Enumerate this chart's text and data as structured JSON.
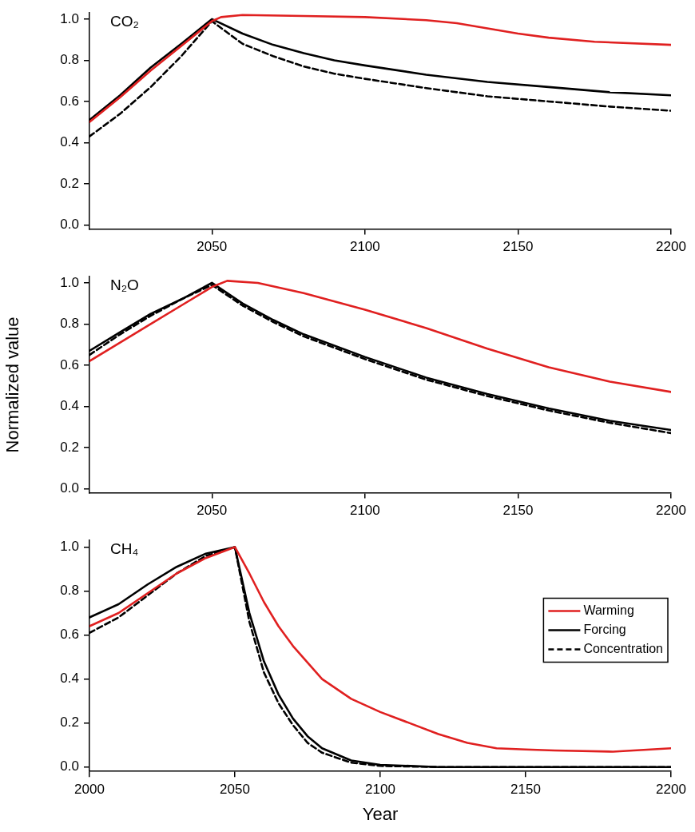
{
  "chart_data": [
    {
      "type": "line",
      "title": "CO₂",
      "xlim": [
        2010,
        2200
      ],
      "xticks": [
        2050,
        2100,
        2150,
        2200
      ],
      "ylim": [
        -0.02,
        1.03
      ],
      "yticks": [
        {
          "value": 0,
          "label": "0.0"
        },
        {
          "value": 0.2,
          "label": "0.2"
        },
        {
          "value": 0.4,
          "label": "0.4"
        },
        {
          "value": 0.6,
          "label": "0.6"
        },
        {
          "value": 0.8,
          "label": "0.8"
        },
        {
          "value": 1,
          "label": "1.0"
        }
      ],
      "series": [
        {
          "color": "#e02020",
          "line_style": "solid",
          "x": [
            2010,
            2020,
            2030,
            2040,
            2050,
            2053,
            2060,
            2080,
            2100,
            2120,
            2130,
            2140,
            2150,
            2160,
            2175,
            2200
          ],
          "values": [
            0.5,
            0.62,
            0.75,
            0.87,
            0.99,
            1.01,
            1.02,
            1.015,
            1.01,
            0.995,
            0.98,
            0.955,
            0.93,
            0.91,
            0.89,
            0.875
          ]
        },
        {
          "color": "#000000",
          "line_style": "solid",
          "x": [
            2010,
            2020,
            2030,
            2040,
            2050,
            2060,
            2070,
            2080,
            2090,
            2100,
            2120,
            2140,
            2160,
            2180,
            2200
          ],
          "values": [
            0.51,
            0.63,
            0.765,
            0.88,
            1.0,
            0.93,
            0.875,
            0.835,
            0.8,
            0.775,
            0.73,
            0.695,
            0.67,
            0.645,
            0.63
          ]
        },
        {
          "color": "#000000",
          "line_style": "dashed",
          "x": [
            2010,
            2020,
            2030,
            2040,
            2050,
            2060,
            2070,
            2080,
            2090,
            2100,
            2120,
            2140,
            2160,
            2180,
            2200
          ],
          "values": [
            0.43,
            0.54,
            0.67,
            0.82,
            0.99,
            0.88,
            0.82,
            0.77,
            0.735,
            0.71,
            0.665,
            0.625,
            0.6,
            0.575,
            0.555
          ]
        }
      ]
    },
    {
      "type": "line",
      "title": "N₂O",
      "ylabel": "Normalized value",
      "xlim": [
        2010,
        2200
      ],
      "xticks": [
        2050,
        2100,
        2150,
        2200
      ],
      "ylim": [
        -0.02,
        1.03
      ],
      "yticks": [
        {
          "value": 0,
          "label": "0.0"
        },
        {
          "value": 0.2,
          "label": "0.2"
        },
        {
          "value": 0.4,
          "label": "0.4"
        },
        {
          "value": 0.6,
          "label": "0.6"
        },
        {
          "value": 0.8,
          "label": "0.8"
        },
        {
          "value": 1,
          "label": "1.0"
        }
      ],
      "series": [
        {
          "color": "#e02020",
          "line_style": "solid",
          "x": [
            2010,
            2020,
            2030,
            2040,
            2050,
            2055,
            2065,
            2080,
            2100,
            2120,
            2140,
            2160,
            2180,
            2200
          ],
          "values": [
            0.62,
            0.71,
            0.8,
            0.89,
            0.98,
            1.01,
            1.0,
            0.95,
            0.87,
            0.78,
            0.68,
            0.59,
            0.52,
            0.47
          ]
        },
        {
          "color": "#000000",
          "line_style": "solid",
          "x": [
            2010,
            2020,
            2030,
            2040,
            2050,
            2060,
            2070,
            2080,
            2100,
            2120,
            2140,
            2160,
            2180,
            2200
          ],
          "values": [
            0.67,
            0.76,
            0.85,
            0.92,
            1.0,
            0.9,
            0.82,
            0.75,
            0.64,
            0.54,
            0.46,
            0.39,
            0.33,
            0.285
          ]
        },
        {
          "color": "#000000",
          "line_style": "dashed",
          "x": [
            2010,
            2020,
            2030,
            2040,
            2050,
            2060,
            2070,
            2080,
            2100,
            2120,
            2140,
            2160,
            2180,
            2200
          ],
          "values": [
            0.65,
            0.75,
            0.84,
            0.92,
            0.99,
            0.89,
            0.81,
            0.74,
            0.63,
            0.53,
            0.45,
            0.38,
            0.32,
            0.27
          ]
        }
      ]
    },
    {
      "type": "line",
      "title": "CH₄",
      "xlabel": "Year",
      "legend": "right",
      "xlim": [
        2000,
        2200
      ],
      "xticks": [
        2000,
        2050,
        2100,
        2150,
        2200
      ],
      "ylim": [
        -0.02,
        1.03
      ],
      "yticks": [
        {
          "value": 0,
          "label": "0.0"
        },
        {
          "value": 0.2,
          "label": "0.2"
        },
        {
          "value": 0.4,
          "label": "0.4"
        },
        {
          "value": 0.6,
          "label": "0.6"
        },
        {
          "value": 0.8,
          "label": "0.8"
        },
        {
          "value": 1,
          "label": "1.0"
        }
      ],
      "series": [
        {
          "name": "Warming",
          "color": "#e02020",
          "line_style": "solid",
          "x": [
            2000,
            2010,
            2020,
            2030,
            2040,
            2050,
            2055,
            2060,
            2065,
            2070,
            2080,
            2090,
            2100,
            2110,
            2120,
            2130,
            2140,
            2150,
            2160,
            2180,
            2200
          ],
          "values": [
            0.64,
            0.7,
            0.79,
            0.88,
            0.95,
            1.0,
            0.88,
            0.75,
            0.64,
            0.55,
            0.4,
            0.31,
            0.25,
            0.2,
            0.15,
            0.11,
            0.085,
            0.08,
            0.075,
            0.07,
            0.085
          ]
        },
        {
          "name": "Forcing",
          "color": "#000000",
          "line_style": "solid",
          "x": [
            2000,
            2010,
            2020,
            2030,
            2040,
            2050,
            2055,
            2060,
            2065,
            2070,
            2075,
            2080,
            2090,
            2100,
            2120,
            2200
          ],
          "values": [
            0.68,
            0.74,
            0.83,
            0.91,
            0.97,
            1.0,
            0.7,
            0.48,
            0.33,
            0.22,
            0.14,
            0.085,
            0.03,
            0.01,
            0.0,
            0.0
          ]
        },
        {
          "name": "Concentration",
          "color": "#000000",
          "line_style": "dashed",
          "x": [
            2000,
            2010,
            2020,
            2030,
            2040,
            2050,
            2055,
            2060,
            2065,
            2070,
            2075,
            2080,
            2090,
            2100,
            2120,
            2200
          ],
          "values": [
            0.61,
            0.68,
            0.78,
            0.88,
            0.96,
            1.0,
            0.66,
            0.43,
            0.29,
            0.19,
            0.11,
            0.065,
            0.02,
            0.005,
            0.0,
            0.0
          ]
        }
      ]
    }
  ]
}
